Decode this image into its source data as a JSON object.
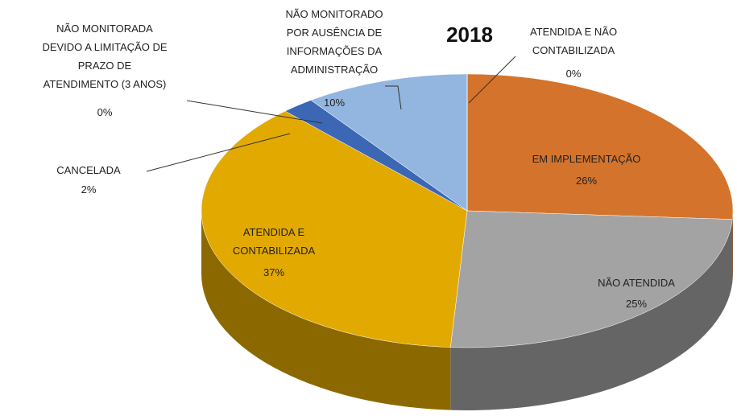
{
  "chart_data": {
    "type": "pie3d",
    "title": "2018",
    "categories": [
      "EM IMPLEMENTAÇÃO",
      "NÃO ATENDIDA",
      "ATENDIDA E\nCONTABILIZADA",
      "CANCELADA",
      "NÃO MONITORADA\nDEVIDO A LIMITAÇÃO DE\nPRAZO DE\nATENDIMENTO (3 ANOS)",
      "NÃO MONITORADO\nPOR AUSÊNCIA DE\nINFORMAÇÕES DA\nADMINISTRAÇÃO",
      "ATENDIDA E NÃO\nCONTABILIZADA"
    ],
    "values": [
      26,
      25,
      37,
      2,
      0,
      10,
      0
    ],
    "value_labels": [
      "26%",
      "25%",
      "37%",
      "2%",
      "0%",
      "10%",
      "0%"
    ],
    "colors": [
      "#d4742c",
      "#a3a3a3",
      "#e2a900",
      "#3b67b5",
      "#2f5597",
      "#93b6e0",
      "#7f7f7f"
    ]
  }
}
